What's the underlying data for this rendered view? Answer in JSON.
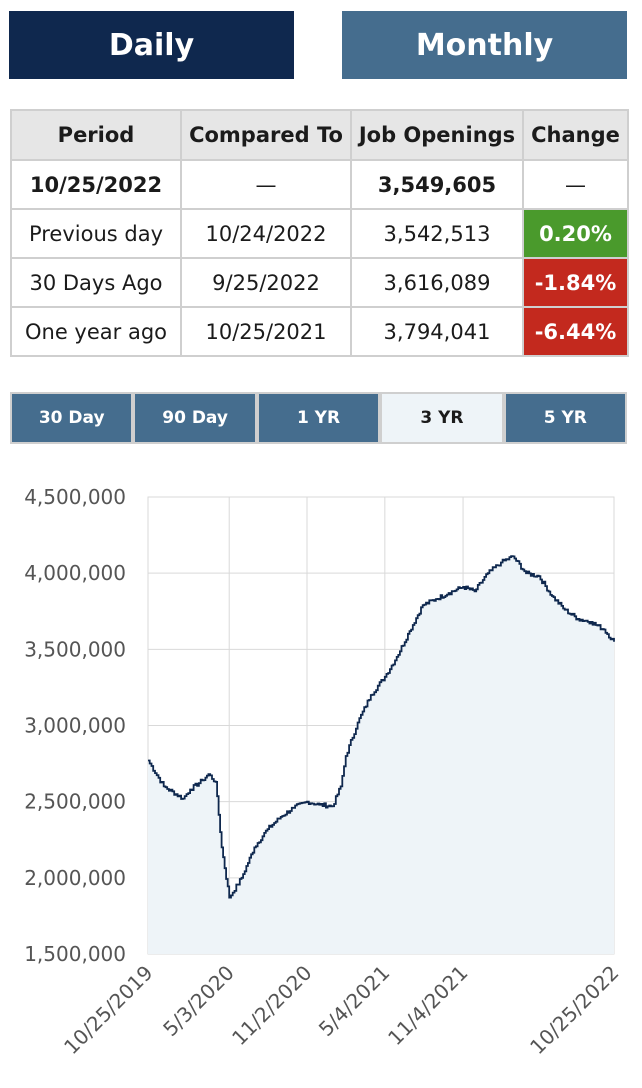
{
  "toggle": {
    "daily": "Daily",
    "monthly": "Monthly",
    "active": "Daily"
  },
  "table": {
    "headers": [
      "Period",
      "Compared To",
      "Job Openings",
      "Change"
    ],
    "rows": [
      {
        "period": "10/25/2022",
        "compared": "—",
        "openings": "3,549,605",
        "change": "—"
      },
      {
        "period": "Previous day",
        "compared": "10/24/2022",
        "openings": "3,542,513",
        "change": "0.20%"
      },
      {
        "period": "30 Days Ago",
        "compared": "9/25/2022",
        "openings": "3,616,089",
        "change": "-1.84%"
      },
      {
        "period": "One year ago",
        "compared": "10/25/2021",
        "openings": "3,794,041",
        "change": "-6.44%"
      }
    ]
  },
  "ranges": {
    "items": [
      "30 Day",
      "90 Day",
      "1 YR",
      "3 YR",
      "5 YR"
    ],
    "active": "3 YR"
  },
  "colors": {
    "positive": "#4a9a2c",
    "negative": "#c3291e",
    "line": "#0f284e",
    "fill": "#eef4f8",
    "navy": "#0f284e",
    "steel": "#456d8e"
  },
  "chart_data": {
    "type": "area",
    "x": [
      "10/25/2019",
      "12/1/2019",
      "1/15/2020",
      "2/1/2020",
      "3/1/2020",
      "3/15/2020",
      "4/1/2020",
      "4/15/2020",
      "5/3/2020",
      "6/1/2020",
      "7/1/2020",
      "8/1/2020",
      "9/1/2020",
      "10/1/2020",
      "11/2/2020",
      "12/1/2020",
      "1/1/2021",
      "1/20/2021",
      "2/1/2021",
      "3/1/2021",
      "4/1/2021",
      "5/4/2021",
      "6/1/2021",
      "7/1/2021",
      "8/1/2021",
      "9/1/2021",
      "10/1/2021",
      "11/4/2021",
      "12/1/2021",
      "1/1/2022",
      "2/1/2022",
      "3/1/2022",
      "4/1/2022",
      "5/1/2022",
      "6/1/2022",
      "7/1/2022",
      "8/1/2022",
      "9/1/2022",
      "10/1/2022",
      "10/25/2022"
    ],
    "y": [
      2770000,
      2600000,
      2520000,
      2580000,
      2640000,
      2680000,
      2630000,
      2200000,
      1870000,
      2000000,
      2200000,
      2320000,
      2400000,
      2460000,
      2500000,
      2480000,
      2470000,
      2600000,
      2800000,
      3020000,
      3200000,
      3320000,
      3450000,
      3620000,
      3790000,
      3830000,
      3870000,
      3910000,
      3880000,
      4000000,
      4070000,
      4110000,
      4000000,
      3980000,
      3850000,
      3760000,
      3700000,
      3680000,
      3630000,
      3549605
    ],
    "x_tick_labels": [
      "10/25/2019",
      "5/3/2020",
      "11/2/2020",
      "5/4/2021",
      "11/4/2021",
      "10/25/2022"
    ],
    "y_tick_labels": [
      "4,500,000",
      "4,000,000",
      "3,500,000",
      "3,000,000",
      "2,500,000",
      "2,000,000",
      "1,500,000"
    ],
    "ylim": [
      1500000,
      4500000
    ],
    "grid": true
  }
}
